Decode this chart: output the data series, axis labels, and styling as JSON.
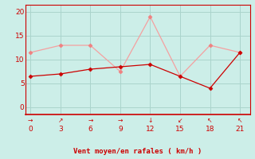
{
  "x": [
    0,
    3,
    6,
    9,
    12,
    15,
    18,
    21
  ],
  "y_rafales": [
    11.5,
    13,
    13,
    7.5,
    19,
    6.5,
    13,
    11.5
  ],
  "y_moyen": [
    6.5,
    7,
    8,
    8.5,
    9,
    6.5,
    4,
    11.5
  ],
  "arrows": [
    "→",
    "↗",
    "→",
    "→",
    "↓",
    "↙",
    "↖",
    "↖"
  ],
  "xlabel": "Vent moyen/en rafales ( km/h )",
  "xlim": [
    -0.5,
    22
  ],
  "ylim": [
    -1.5,
    21.5
  ],
  "yticks": [
    0,
    5,
    10,
    15,
    20
  ],
  "xticks": [
    0,
    3,
    6,
    9,
    12,
    15,
    18,
    21
  ],
  "bg_color": "#cceee8",
  "line_color_rafales": "#f5a0a0",
  "line_color_moyen": "#cc0000",
  "marker_color_rafales": "#f08080",
  "marker_color_moyen": "#cc0000",
  "grid_color": "#aad4cc",
  "arrow_color": "#cc0000",
  "xlabel_color": "#cc0000",
  "tick_color": "#cc0000",
  "spine_color": "#cc0000"
}
